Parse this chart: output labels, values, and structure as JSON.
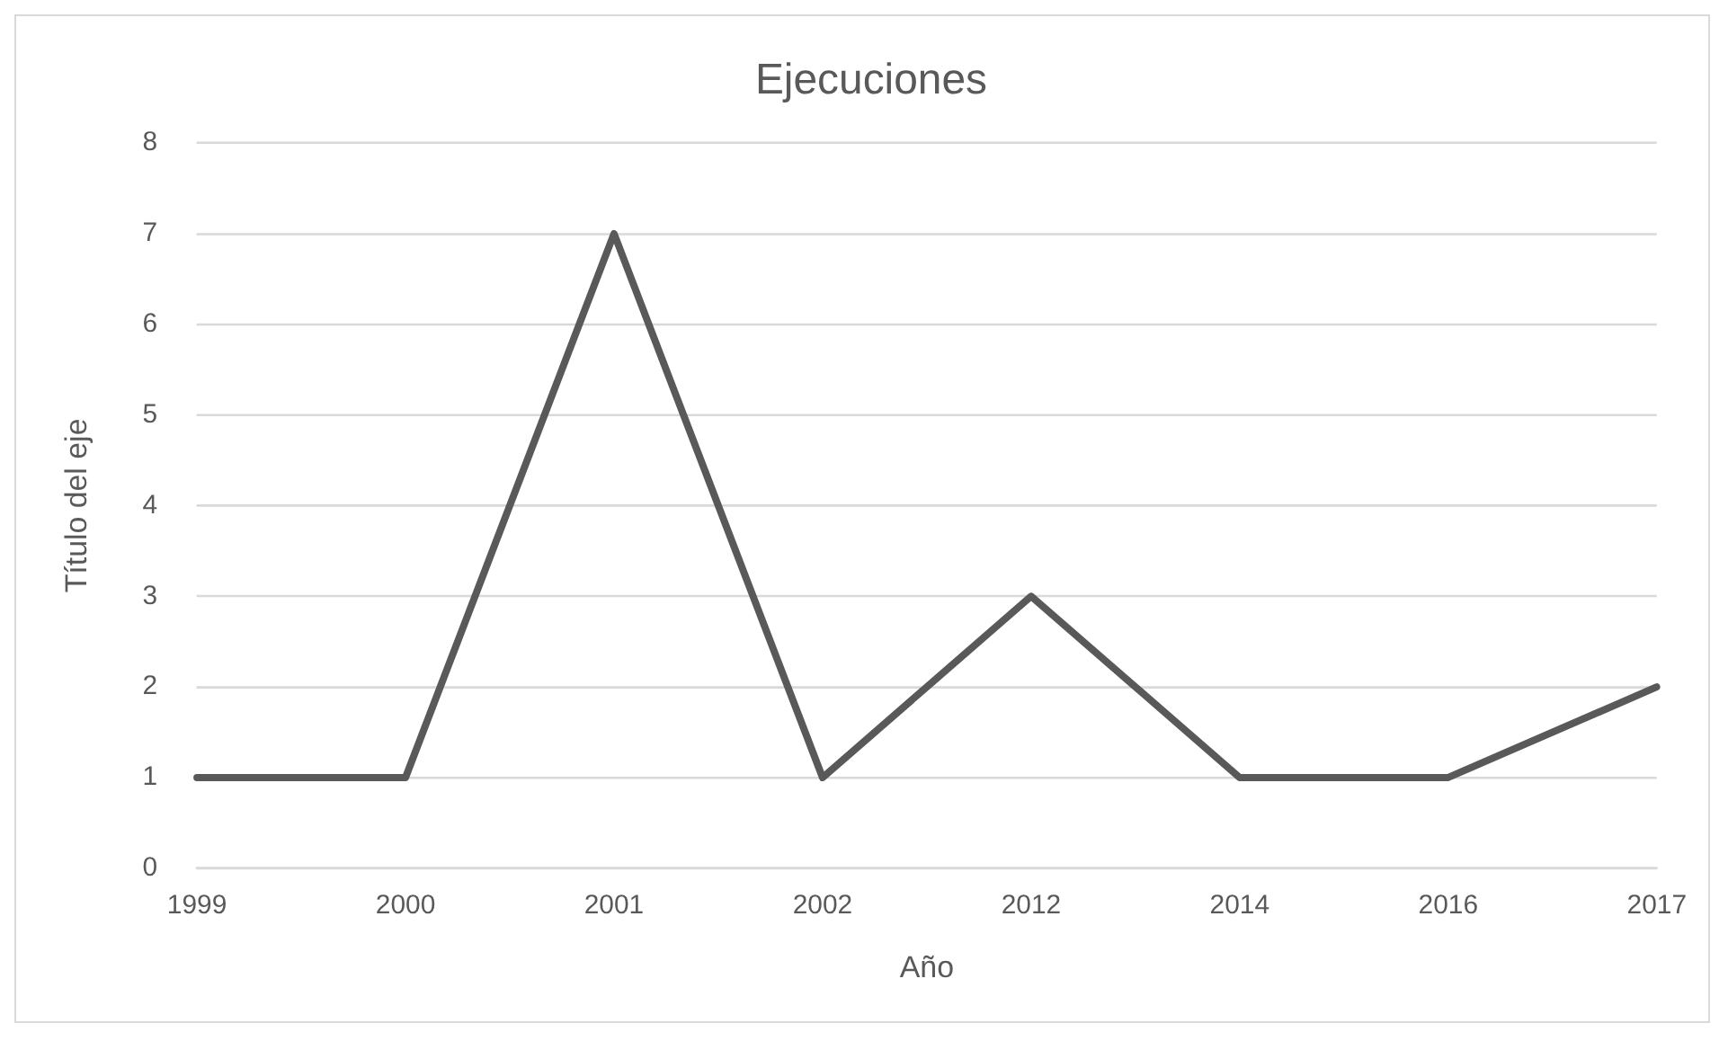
{
  "chart_data": {
    "type": "line",
    "title": "Ejecuciones",
    "xlabel": "Año",
    "ylabel": "Título del eje",
    "categories": [
      "1999",
      "2000",
      "2001",
      "2002",
      "2012",
      "2014",
      "2016",
      "2017"
    ],
    "values": [
      1,
      1,
      7,
      1,
      3,
      1,
      1,
      2
    ],
    "color": "#595959",
    "ylim": [
      0,
      8
    ],
    "yticks": [
      0,
      1,
      2,
      3,
      4,
      5,
      6,
      7,
      8
    ],
    "grid": "y",
    "marker": "none"
  }
}
